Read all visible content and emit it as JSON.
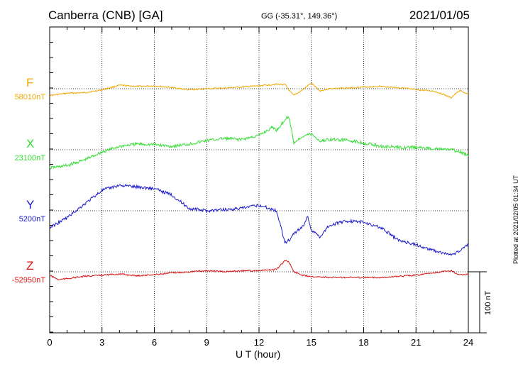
{
  "header": {
    "title": "Canberra (CNB)  [GA]",
    "coords": "GG (-35.31°, 149.36°)",
    "date": "2021/01/05"
  },
  "footer": {
    "xlabel": "U T (hour)",
    "plotted": "Plotted at 2021/02/05 01:34 UT"
  },
  "chart_data": {
    "type": "line",
    "xlabel": "U T (hour)",
    "xlim": [
      0,
      24
    ],
    "xticks": [
      "0",
      "3",
      "6",
      "9",
      "12",
      "15",
      "18",
      "21",
      "24"
    ],
    "grid": true,
    "scale_bar": "100 nT",
    "series": [
      {
        "name": "F",
        "baseline": "58010nT",
        "color": "#f0a800",
        "x": [
          0,
          1,
          2,
          3,
          4,
          5,
          6,
          7,
          8,
          9,
          10,
          11,
          12,
          13,
          13.5,
          13.8,
          14,
          14.5,
          15,
          15.5,
          16,
          17,
          18,
          19,
          20,
          21,
          22,
          22.5,
          23,
          23.5,
          24
        ],
        "y": [
          -12,
          -8,
          -7,
          -2,
          6,
          4,
          5,
          2,
          -2,
          0,
          1,
          3,
          5,
          8,
          7,
          -6,
          -12,
          -2,
          10,
          -4,
          0,
          1,
          3,
          4,
          2,
          -2,
          -4,
          -9,
          -16,
          -3,
          -10
        ]
      },
      {
        "name": "X",
        "baseline": "23100nT",
        "color": "#33dd33",
        "x": [
          0,
          1,
          2,
          3,
          4,
          5,
          6,
          7,
          8,
          9,
          10,
          11,
          12,
          12.8,
          13,
          13.5,
          13.7,
          14,
          14.5,
          15,
          15.5,
          16,
          17,
          18,
          19,
          20,
          21,
          22,
          23,
          23.5,
          24
        ],
        "y": [
          -32,
          -28,
          -18,
          -4,
          6,
          10,
          9,
          6,
          10,
          16,
          20,
          18,
          25,
          40,
          34,
          53,
          60,
          12,
          24,
          28,
          15,
          18,
          17,
          12,
          6,
          4,
          4,
          2,
          0,
          -4,
          -10
        ]
      },
      {
        "name": "Y",
        "baseline": "5200nT",
        "color": "#1a1acc",
        "x": [
          0,
          1,
          2,
          3,
          4,
          5,
          6,
          7,
          8,
          9,
          10,
          11,
          12,
          12.8,
          13,
          13.5,
          13.8,
          14,
          14.5,
          14.8,
          15,
          15.5,
          16,
          17,
          18,
          19,
          20,
          21,
          22,
          22.5,
          23,
          23.5,
          24
        ],
        "y": [
          -30,
          -12,
          12,
          36,
          45,
          42,
          39,
          28,
          4,
          0,
          2,
          4,
          10,
          2,
          0,
          -56,
          -50,
          -40,
          -28,
          -10,
          -34,
          -46,
          -26,
          -18,
          -20,
          -30,
          -52,
          -60,
          -70,
          -74,
          -78,
          -72,
          -58
        ]
      },
      {
        "name": "Z",
        "baseline": "-52950nT",
        "color": "#dd1111",
        "x": [
          0,
          0.5,
          1,
          2,
          3,
          4,
          5,
          6,
          7,
          8,
          9,
          10,
          11,
          12,
          13,
          13.5,
          13.7,
          14,
          14.5,
          15,
          16,
          17,
          18,
          19,
          20,
          21,
          22,
          23,
          23.5,
          24
        ],
        "y": [
          -6,
          -14,
          -12,
          -8,
          -6,
          -4,
          -7,
          -5,
          -2,
          0,
          2,
          0,
          2,
          2,
          4,
          20,
          18,
          0,
          -6,
          -8,
          -10,
          -10,
          -10,
          -10,
          -8,
          -6,
          -2,
          2,
          -6,
          -4
        ]
      }
    ]
  }
}
